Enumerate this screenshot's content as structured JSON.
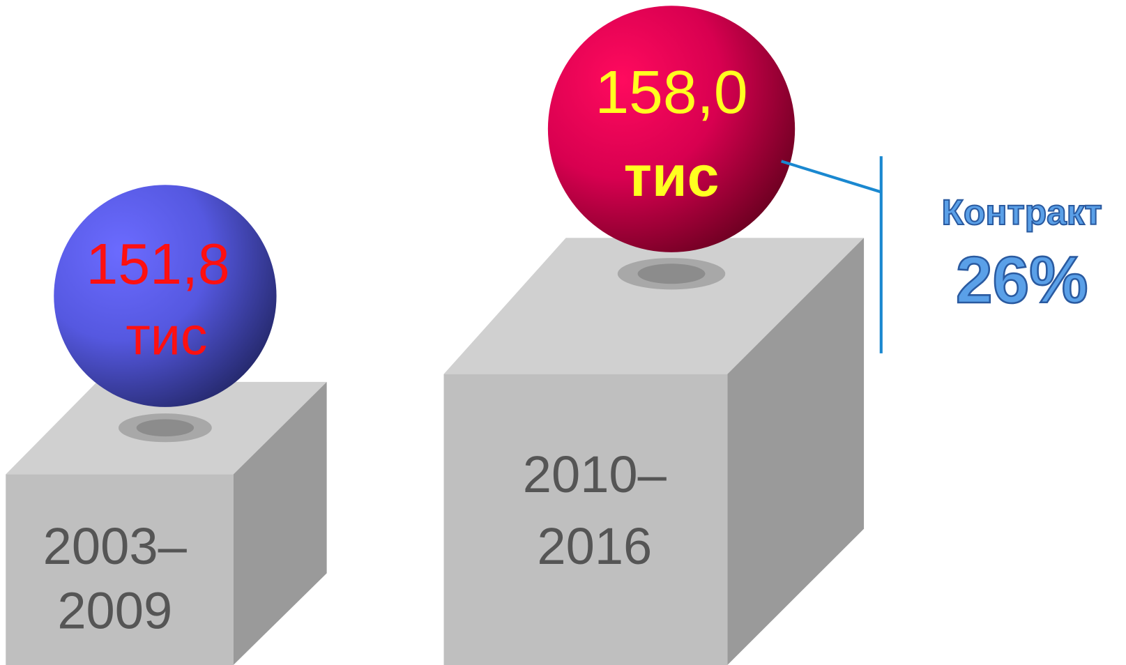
{
  "items": [
    {
      "value": "151,8",
      "unit": "тис",
      "period": [
        "2003–",
        "2009"
      ]
    },
    {
      "value": "158,0",
      "unit": "тис",
      "period": [
        "2010–",
        "2016"
      ]
    }
  ],
  "callout": {
    "label": "Контракт",
    "value": "26%"
  }
}
